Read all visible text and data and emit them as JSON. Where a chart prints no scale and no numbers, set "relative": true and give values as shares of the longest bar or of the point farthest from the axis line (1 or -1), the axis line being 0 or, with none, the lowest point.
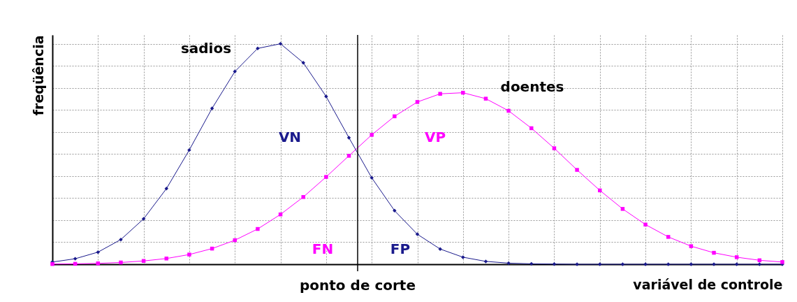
{
  "chart_data": {
    "type": "line",
    "relative": true,
    "xlabel": "variável de controle",
    "ylabel": "freqüência",
    "categories": [
      null,
      null,
      null,
      null,
      null,
      null,
      null,
      null,
      null,
      null,
      null,
      null,
      null,
      null,
      null,
      null,
      null,
      null,
      null,
      null,
      null,
      null,
      null,
      null,
      null,
      null,
      null,
      null,
      null,
      null,
      null,
      null,
      null
    ],
    "grid": true,
    "legend": false,
    "line_style": "solid",
    "series": [
      {
        "color": "#1a1a8c",
        "marker": "diamond",
        "values": [
          0.01,
          0.025,
          0.055,
          0.112,
          0.206,
          0.343,
          0.518,
          0.707,
          0.874,
          0.979,
          1,
          0.914,
          0.761,
          0.574,
          0.392,
          0.243,
          0.136,
          0.069,
          0.032,
          0.013,
          0.005,
          0.002,
          0.001,
          0,
          0,
          0,
          0,
          0,
          0,
          0,
          0,
          0,
          0
        ]
      },
      {
        "color": "#ff00ff",
        "marker": "square",
        "values": [
          0.001,
          0.002,
          0.004,
          0.008,
          0.015,
          0.026,
          0.044,
          0.071,
          0.109,
          0.16,
          0.226,
          0.305,
          0.396,
          0.492,
          0.587,
          0.671,
          0.736,
          0.773,
          0.778,
          0.751,
          0.696,
          0.617,
          0.526,
          0.428,
          0.335,
          0.251,
          0.18,
          0.124,
          0.082,
          0.052,
          0.032,
          0.018,
          0.01
        ]
      }
    ],
    "annotations": [
      "sadios",
      "doentes",
      "VN",
      "VP",
      "FN",
      "FP",
      "ponto de corte"
    ]
  }
}
